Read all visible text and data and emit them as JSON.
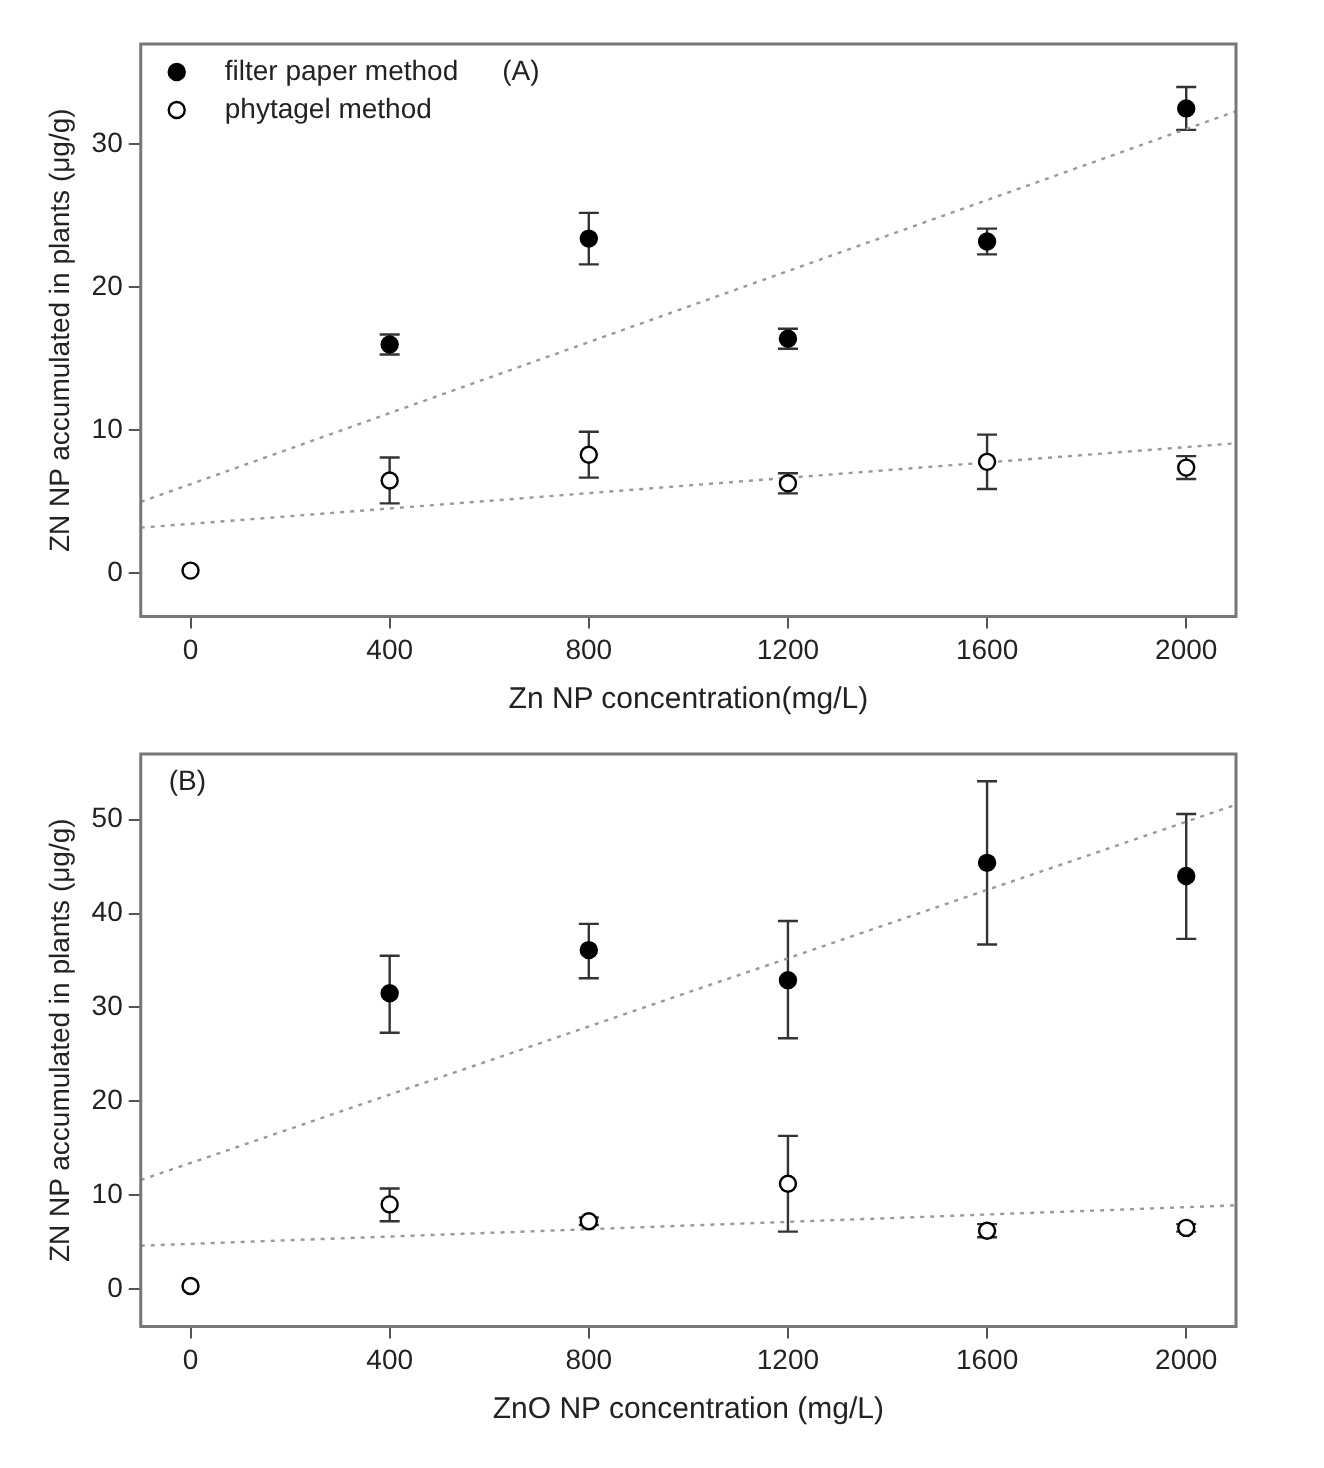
{
  "chart_data": [
    {
      "type": "scatter",
      "annotations": [
        "(A)"
      ],
      "xlabel": "Zn NP concentration(mg/L)",
      "ylabel": "ZN NP accumulated in plants (μg/g)",
      "x": [
        0,
        400,
        800,
        1200,
        1600,
        2000
      ],
      "xlim": [
        -100,
        2100
      ],
      "xticks": [
        0,
        400,
        800,
        1200,
        1600,
        2000
      ],
      "ylim": [
        -3,
        37
      ],
      "yticks": [
        0,
        10,
        20,
        30
      ],
      "grid": false,
      "legend": "top left",
      "marker": "circle",
      "series": [
        {
          "name": "filter paper method",
          "color": "#000000",
          "x": [
            400,
            800,
            1200,
            1600,
            2000
          ],
          "values": [
            16.0,
            23.4,
            16.4,
            23.2,
            32.5
          ],
          "errors": [
            [
              15.3,
              16.7
            ],
            [
              21.6,
              25.2
            ],
            [
              15.7,
              17.1
            ],
            [
              22.3,
              24.1
            ],
            [
              31.0,
              34.0
            ]
          ]
        },
        {
          "name": "phytagel method",
          "color": "#ffffff",
          "values": [
            0.2,
            6.5,
            8.3,
            6.3,
            7.8,
            7.4
          ],
          "errors": [
            null,
            [
              4.9,
              8.1
            ],
            [
              6.7,
              9.9
            ],
            [
              5.6,
              7.0
            ],
            [
              5.9,
              9.7
            ],
            [
              6.6,
              8.2
            ]
          ]
        },
        {
          "type": "line",
          "color": "#999999",
          "line_style": "dotted",
          "marker": "none",
          "x": [
            -100,
            2100
          ],
          "values": [
            5.0,
            32.3
          ]
        },
        {
          "type": "line",
          "color": "#999999",
          "line_style": "dotted",
          "marker": "none",
          "x": [
            -100,
            2100
          ],
          "values": [
            3.2,
            9.1
          ]
        }
      ]
    },
    {
      "type": "scatter",
      "annotations": [
        "(B)"
      ],
      "xlabel": "ZnO NP concentration (mg/L)",
      "ylabel": "ZN NP accumulated in plants (μg/g)",
      "x": [
        0,
        400,
        800,
        1200,
        1600,
        2000
      ],
      "xlim": [
        -100,
        2100
      ],
      "xticks": [
        0,
        400,
        800,
        1200,
        1600,
        2000
      ],
      "ylim": [
        -4,
        57
      ],
      "yticks": [
        0,
        10,
        20,
        30,
        40,
        50
      ],
      "grid": false,
      "marker": "circle",
      "series": [
        {
          "color": "#000000",
          "x": [
            400,
            800,
            1200,
            1600,
            2000
          ],
          "values": [
            31.5,
            36.1,
            32.9,
            45.4,
            44.0
          ],
          "errors": [
            [
              27.3,
              35.5
            ],
            [
              33.1,
              38.9
            ],
            [
              26.7,
              39.2
            ],
            [
              36.7,
              54.1
            ],
            [
              37.3,
              50.6
            ]
          ]
        },
        {
          "color": "#ffffff",
          "values": [
            0.3,
            9.0,
            7.2,
            11.2,
            6.2,
            6.5
          ],
          "errors": [
            null,
            [
              7.2,
              10.7
            ],
            [
              6.8,
              7.6
            ],
            [
              6.1,
              16.3
            ],
            [
              5.5,
              6.9
            ],
            [
              6.1,
              6.9
            ]
          ]
        },
        {
          "type": "line",
          "color": "#999999",
          "line_style": "dotted",
          "marker": "none",
          "x": [
            -100,
            2100
          ],
          "values": [
            11.6,
            51.6
          ]
        },
        {
          "type": "line",
          "color": "#999999",
          "line_style": "dotted",
          "marker": "none",
          "x": [
            -100,
            2100
          ],
          "values": [
            4.6,
            8.9
          ]
        }
      ]
    }
  ]
}
